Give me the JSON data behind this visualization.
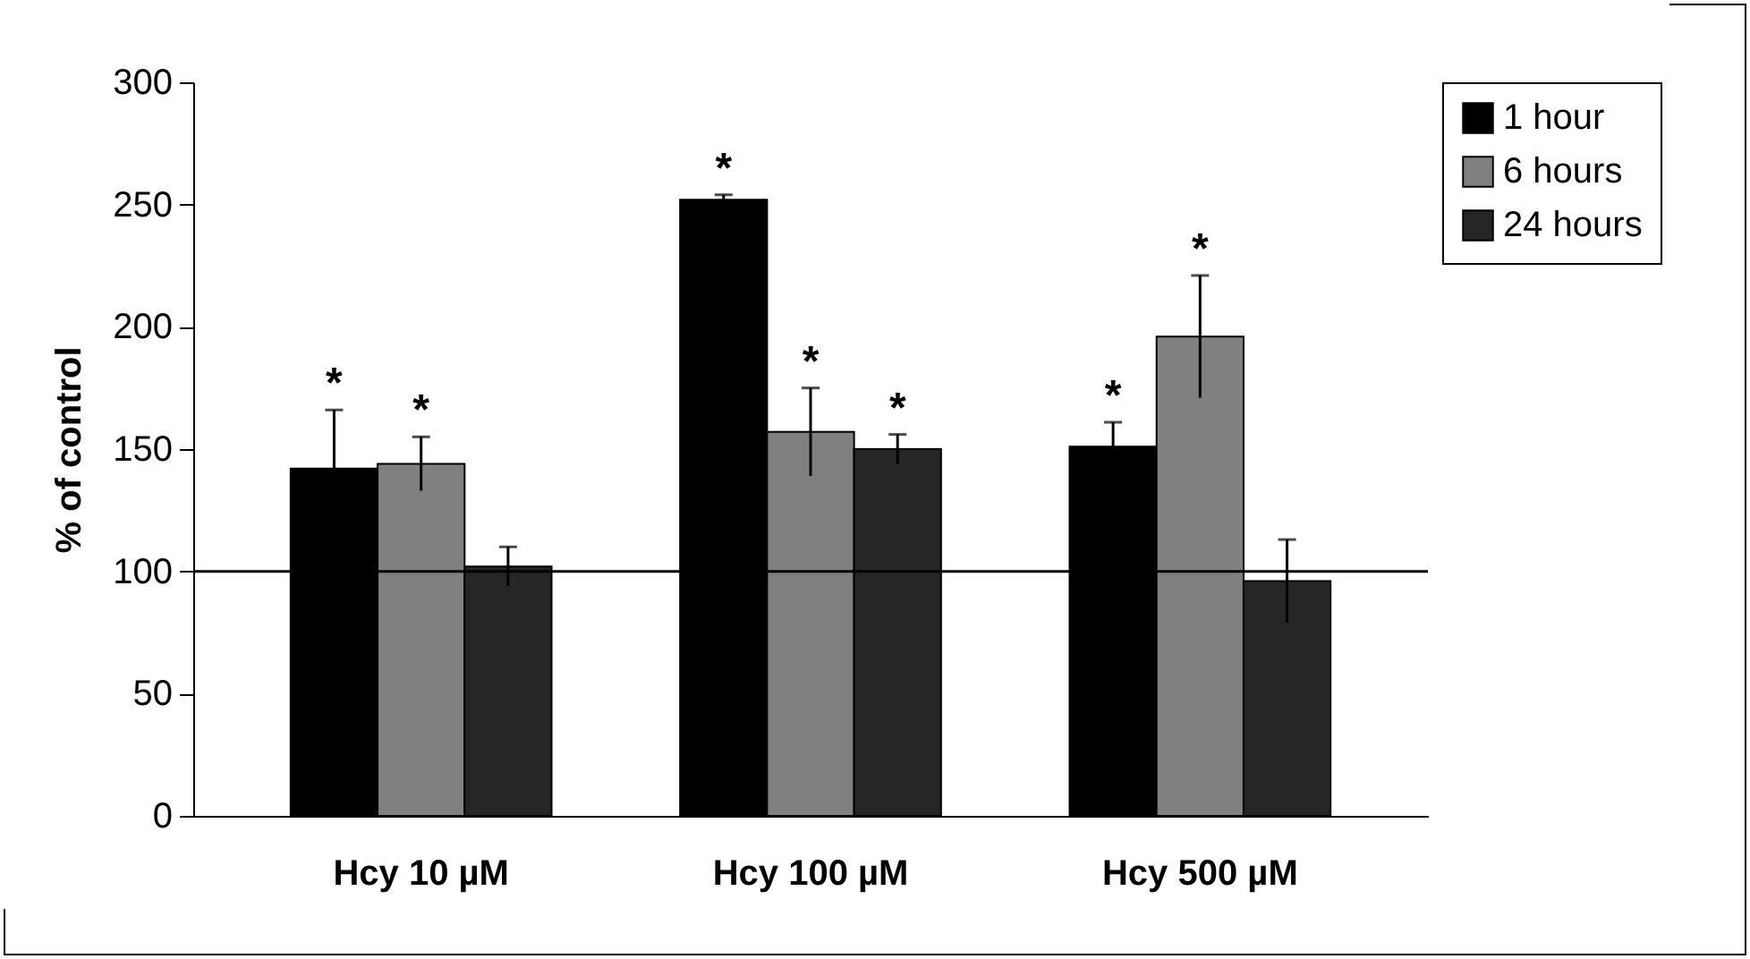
{
  "chart_data": {
    "type": "bar",
    "ylabel": "% of control",
    "categories": [
      "Hcy 10 µM",
      "Hcy 100 µM",
      "Hcy 500 µM"
    ],
    "series": [
      {
        "name": "1 hour",
        "color": "#000000",
        "values": [
          142,
          252,
          151
        ],
        "errors": [
          24,
          2,
          10
        ],
        "value_labels": [
          "*",
          "*",
          "*"
        ]
      },
      {
        "name": "6 hours",
        "color": "#808080",
        "values": [
          144,
          157,
          196
        ],
        "errors": [
          11,
          18,
          25
        ],
        "value_labels": [
          "*",
          "*",
          "*"
        ]
      },
      {
        "name": "24 hours",
        "color": "#262626",
        "values": [
          102,
          150,
          96
        ],
        "errors": [
          8,
          6,
          17
        ],
        "value_labels": [
          null,
          "*",
          null
        ]
      }
    ],
    "ylim": [
      0,
      300
    ],
    "yticks": [
      0,
      50,
      100,
      150,
      200,
      250,
      300
    ],
    "ref_lines": [
      {
        "axis": "y",
        "value": 100,
        "color": "#000000"
      }
    ],
    "grid": false,
    "legend": "top right"
  }
}
